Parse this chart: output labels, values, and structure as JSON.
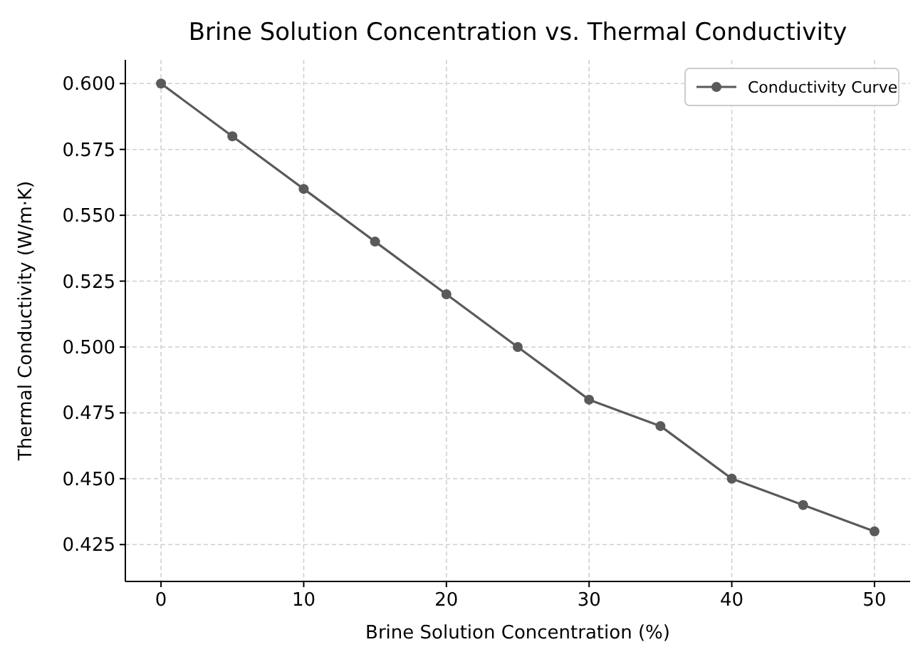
{
  "chart_data": {
    "type": "line",
    "title": "Brine Solution Concentration vs. Thermal Conductivity",
    "xlabel": "Brine Solution Concentration (%)",
    "ylabel": "Thermal Conductivity (W/m·K)",
    "x": [
      0,
      5,
      10,
      15,
      20,
      25,
      30,
      35,
      40,
      45,
      50
    ],
    "series": [
      {
        "name": "Conductivity Curve",
        "color": "#5a5a5a",
        "values": [
          0.6,
          0.58,
          0.56,
          0.54,
          0.52,
          0.5,
          0.48,
          0.47,
          0.45,
          0.44,
          0.43
        ]
      }
    ],
    "xlim": [
      -2.5,
      52.5
    ],
    "xticks": [
      0,
      10,
      20,
      30,
      40,
      50
    ],
    "ylim": [
      0.411,
      0.609
    ],
    "yticks": [
      {
        "value": 0.425,
        "label": "0.425"
      },
      {
        "value": 0.45,
        "label": "0.450"
      },
      {
        "value": 0.475,
        "label": "0.475"
      },
      {
        "value": 0.5,
        "label": "0.500"
      },
      {
        "value": 0.525,
        "label": "0.525"
      },
      {
        "value": 0.55,
        "label": "0.550"
      },
      {
        "value": 0.575,
        "label": "0.575"
      },
      {
        "value": 0.6,
        "label": "0.600"
      }
    ],
    "grid": true,
    "legend": "top right",
    "marker": "circle",
    "line_style": "solid"
  }
}
